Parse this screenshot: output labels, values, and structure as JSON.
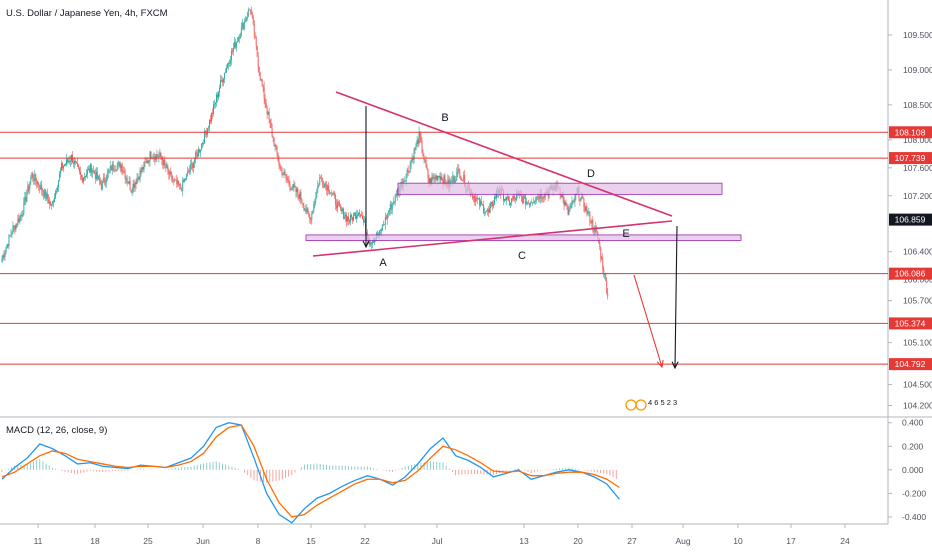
{
  "title": "U.S. Dollar / Japanese Yen, 4h, FXCM",
  "macd_title": "MACD (12, 26, close, 9)",
  "colors": {
    "up": "#26a69a",
    "down": "#ef5350",
    "red_line": "#e53935",
    "pattern": "#d6336c",
    "zone_fill": "#e1bee7",
    "zone_stroke": "#9c27b0",
    "price_tag": "#e53935",
    "current_tag": "#131722",
    "macd_line": "#2196f3",
    "signal_line": "#ff6d00"
  },
  "chart_data": [
    {
      "type": "candlestick",
      "title": "U.S. Dollar / Japanese Yen, 4h, FXCM",
      "ylim": [
        104.05,
        110.0
      ],
      "price_axis_ticks": [
        "109.500",
        "109.000",
        "108.500",
        "108.000",
        "107.600",
        "107.200",
        "106.400",
        "106.000",
        "105.700",
        "105.100",
        "104.500",
        "104.200"
      ],
      "x_ticks": [
        "11",
        "18",
        "25",
        "Jun",
        "8",
        "15",
        "22",
        "Jul",
        "13",
        "20",
        "27",
        "Aug",
        "10",
        "17",
        "24"
      ],
      "horizontal_levels": [
        {
          "label": "108.108",
          "value": 108.108
        },
        {
          "label": "107.739",
          "value": 107.739
        },
        {
          "label": "106.086",
          "value": 106.086
        },
        {
          "label": "105.374",
          "value": 105.374
        },
        {
          "label": "104.792",
          "value": 104.792
        }
      ],
      "current_price": {
        "label": "106.859",
        "value": 106.859
      },
      "pattern_labels": [
        "A",
        "B",
        "C",
        "D",
        "E"
      ],
      "zones": [
        {
          "from": 107.22,
          "to": 107.38
        },
        {
          "from": 106.56,
          "to": 106.64
        }
      ],
      "anchor_closes": [
        106.3,
        106.7,
        106.95,
        107.5,
        107.3,
        107.05,
        107.6,
        107.75,
        107.45,
        107.6,
        107.35,
        107.6,
        107.65,
        107.3,
        107.55,
        107.8,
        107.75,
        107.45,
        107.3,
        107.6,
        107.9,
        108.3,
        108.8,
        109.2,
        109.55,
        109.9,
        108.9,
        108.2,
        107.6,
        107.35,
        107.2,
        106.85,
        107.45,
        107.3,
        107.0,
        106.85,
        107.0,
        106.55,
        106.65,
        107.0,
        107.3,
        107.6,
        108.05,
        107.4,
        107.5,
        107.35,
        107.55,
        107.3,
        107.1,
        106.95,
        107.3,
        107.1,
        107.2,
        107.1,
        107.2,
        107.25,
        107.35,
        106.95,
        107.25,
        106.95,
        106.6,
        105.8
      ],
      "ticker_note": "4 6 5 2 3"
    },
    {
      "type": "macd",
      "title": "MACD (12, 26, close, 9)",
      "ylim": [
        -0.46,
        0.44
      ],
      "y_ticks": [
        "0.400",
        "0.200",
        "0.000",
        "-0.200",
        "-0.400"
      ],
      "macd": [
        -0.08,
        0.02,
        0.1,
        0.22,
        0.18,
        0.12,
        0.05,
        0.06,
        0.03,
        0.02,
        0.01,
        0.04,
        0.03,
        0.02,
        0.06,
        0.1,
        0.2,
        0.36,
        0.4,
        0.38,
        0.1,
        -0.2,
        -0.38,
        -0.45,
        -0.33,
        -0.24,
        -0.2,
        -0.14,
        -0.09,
        -0.05,
        -0.08,
        -0.13,
        -0.06,
        0.05,
        0.18,
        0.27,
        0.12,
        0.08,
        0.02,
        -0.06,
        -0.03,
        0.0,
        -0.08,
        -0.05,
        -0.02,
        0.0,
        -0.02,
        -0.06,
        -0.12,
        -0.25
      ],
      "signal": [
        -0.06,
        -0.02,
        0.05,
        0.12,
        0.16,
        0.14,
        0.09,
        0.07,
        0.05,
        0.03,
        0.02,
        0.03,
        0.03,
        0.02,
        0.04,
        0.07,
        0.14,
        0.28,
        0.36,
        0.38,
        0.2,
        -0.08,
        -0.28,
        -0.4,
        -0.38,
        -0.3,
        -0.24,
        -0.18,
        -0.12,
        -0.08,
        -0.08,
        -0.11,
        -0.09,
        -0.01,
        0.1,
        0.2,
        0.17,
        0.12,
        0.06,
        -0.01,
        -0.02,
        -0.01,
        -0.05,
        -0.05,
        -0.03,
        -0.02,
        -0.02,
        -0.04,
        -0.08,
        -0.15
      ]
    }
  ]
}
